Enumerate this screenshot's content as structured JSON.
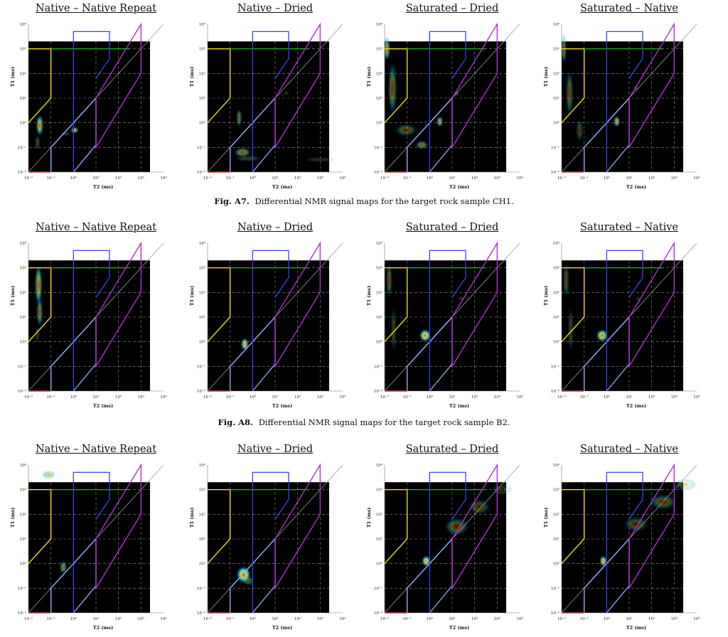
{
  "axis": {
    "x_label": "T2 (ms)",
    "y_label": "T1 (ms)",
    "x_ticks": [
      "10⁻²",
      "10⁻¹",
      "10⁰",
      "10¹",
      "10²",
      "10³",
      "10⁴"
    ],
    "y_ticks": [
      "10⁴",
      "10³",
      "10²",
      "10¹",
      "10⁰",
      "10⁻¹",
      "10⁻²"
    ],
    "range_log10": [
      -2,
      4
    ]
  },
  "colors": {
    "background": "#000000",
    "ratio_line": "#9a9a9a",
    "red_region": "#e01818",
    "yellow_region": "#f0e020",
    "green_region": "#22aa22",
    "blue_region": "#3344ee",
    "lightblue_region": "#8fb0ff",
    "purple_region": "#b030d0"
  },
  "figures": [
    {
      "id": "A7",
      "label": "Fig. A7.",
      "text": "Differential NMR signal maps for the target rock sample CH1.",
      "panels": [
        {
          "title": "Native – Native Repeat",
          "blobs": [
            [
              -1.5,
              -0.1,
              0.12,
              0.35,
              0.8
            ],
            [
              0.05,
              -0.3,
              0.13,
              0.09,
              0.95
            ],
            [
              -0.35,
              -0.45,
              0.2,
              0.05,
              0.35
            ],
            [
              -1.6,
              -0.8,
              0.08,
              0.25,
              0.35
            ]
          ]
        },
        {
          "title": "Native – Dried",
          "blobs": [
            [
              -0.6,
              0.2,
              0.08,
              0.3,
              0.55
            ],
            [
              -0.45,
              -1.2,
              0.3,
              0.15,
              0.55
            ],
            [
              -0.2,
              -1.45,
              0.5,
              0.08,
              0.3
            ],
            [
              3.0,
              -1.5,
              0.6,
              0.06,
              0.25
            ],
            [
              1.5,
              1.2,
              0.1,
              0.05,
              0.3
            ]
          ]
        },
        {
          "title": "Saturated – Dried",
          "blobs": [
            [
              -1.9,
              3.0,
              0.1,
              0.4,
              0.75
            ],
            [
              -1.65,
              1.4,
              0.15,
              0.9,
              0.45
            ],
            [
              -1.05,
              -0.3,
              0.4,
              0.2,
              0.35
            ],
            [
              -0.35,
              -0.9,
              0.22,
              0.13,
              0.55
            ],
            [
              0.45,
              0.05,
              0.1,
              0.17,
              0.78
            ],
            [
              1.2,
              1.2,
              0.06,
              0.08,
              0.55
            ]
          ]
        },
        {
          "title": "Saturated – Native",
          "blobs": [
            [
              -1.9,
              3.0,
              0.08,
              0.5,
              0.55
            ],
            [
              -1.65,
              1.2,
              0.12,
              0.8,
              0.4
            ],
            [
              -1.2,
              -0.3,
              0.12,
              0.4,
              0.3
            ],
            [
              0.45,
              0.05,
              0.1,
              0.17,
              0.85
            ],
            [
              1.3,
              1.4,
              0.06,
              0.08,
              0.45
            ]
          ]
        }
      ]
    },
    {
      "id": "A8",
      "label": "Fig. A8.",
      "text": "Differential NMR signal maps for the target rock sample B2.",
      "panels": [
        {
          "title": "Native – Native Repeat",
          "blobs": [
            [
              -1.55,
              2.3,
              0.12,
              0.7,
              0.7
            ],
            [
              -1.5,
              1.2,
              0.1,
              0.5,
              0.55
            ],
            [
              -1.6,
              0.3,
              0.06,
              0.3,
              0.3
            ]
          ]
        },
        {
          "title": "Native – Dried",
          "blobs": [
            [
              -0.35,
              -0.1,
              0.12,
              0.2,
              0.98
            ]
          ]
        },
        {
          "title": "Saturated – Dried",
          "blobs": [
            [
              -1.8,
              2.5,
              0.1,
              0.6,
              0.4
            ],
            [
              -1.6,
              0.5,
              0.08,
              0.8,
              0.3
            ],
            [
              -0.2,
              0.25,
              0.2,
              0.2,
              0.98
            ],
            [
              1.4,
              1.75,
              0.12,
              0.04,
              0.35
            ],
            [
              1.7,
              1.78,
              0.08,
              0.03,
              0.3
            ]
          ]
        },
        {
          "title": "Saturated – Native",
          "blobs": [
            [
              -1.8,
              2.5,
              0.1,
              0.6,
              0.35
            ],
            [
              -1.6,
              0.5,
              0.08,
              0.8,
              0.3
            ],
            [
              -0.2,
              0.25,
              0.2,
              0.2,
              0.93
            ],
            [
              1.4,
              1.75,
              0.12,
              0.04,
              0.35
            ]
          ]
        }
      ]
    },
    {
      "id": "A9",
      "label": "",
      "text": "",
      "panels": [
        {
          "title": "Native – Native Repeat",
          "blobs": [
            [
              -1.1,
              3.6,
              0.22,
              0.12,
              0.75
            ],
            [
              -0.45,
              -0.15,
              0.12,
              0.2,
              0.62
            ],
            [
              0.3,
              3.7,
              0.05,
              0.05,
              0.25
            ]
          ]
        },
        {
          "title": "Native – Dried",
          "blobs": [
            [
              -0.4,
              -0.45,
              0.25,
              0.27,
              0.98
            ],
            [
              -0.2,
              -0.7,
              0.2,
              0.15,
              0.4
            ]
          ]
        },
        {
          "title": "Saturated – Dried",
          "blobs": [
            [
              -0.15,
              0.1,
              0.15,
              0.17,
              0.98
            ],
            [
              1.2,
              1.5,
              0.45,
              0.3,
              0.35
            ],
            [
              2.2,
              2.3,
              0.4,
              0.25,
              0.3
            ],
            [
              3.2,
              3.0,
              0.4,
              0.2,
              0.2
            ]
          ]
        },
        {
          "title": "Saturated – Native",
          "blobs": [
            [
              -0.15,
              0.1,
              0.12,
              0.17,
              0.98
            ],
            [
              1.3,
              1.6,
              0.45,
              0.25,
              0.3
            ],
            [
              2.5,
              2.5,
              0.5,
              0.25,
              0.35
            ],
            [
              3.5,
              3.2,
              0.4,
              0.2,
              0.3
            ]
          ]
        }
      ]
    }
  ]
}
